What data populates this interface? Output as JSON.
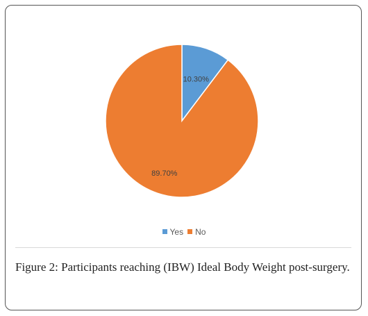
{
  "chart_data": {
    "type": "pie",
    "categories": [
      "Yes",
      "No"
    ],
    "values": [
      10.3,
      89.7
    ],
    "data_labels": [
      "10.30%",
      "89.70%"
    ],
    "colors": [
      "#5B9BD5",
      "#ED7D31"
    ],
    "legend": {
      "position": "bottom",
      "entries": [
        "Yes",
        "No"
      ]
    },
    "start_angle_deg": 0,
    "direction": "clockwise"
  },
  "caption": {
    "label": "Figure 2:",
    "text": "Participants reaching (IBW) Ideal Body Weight post-surgery."
  }
}
